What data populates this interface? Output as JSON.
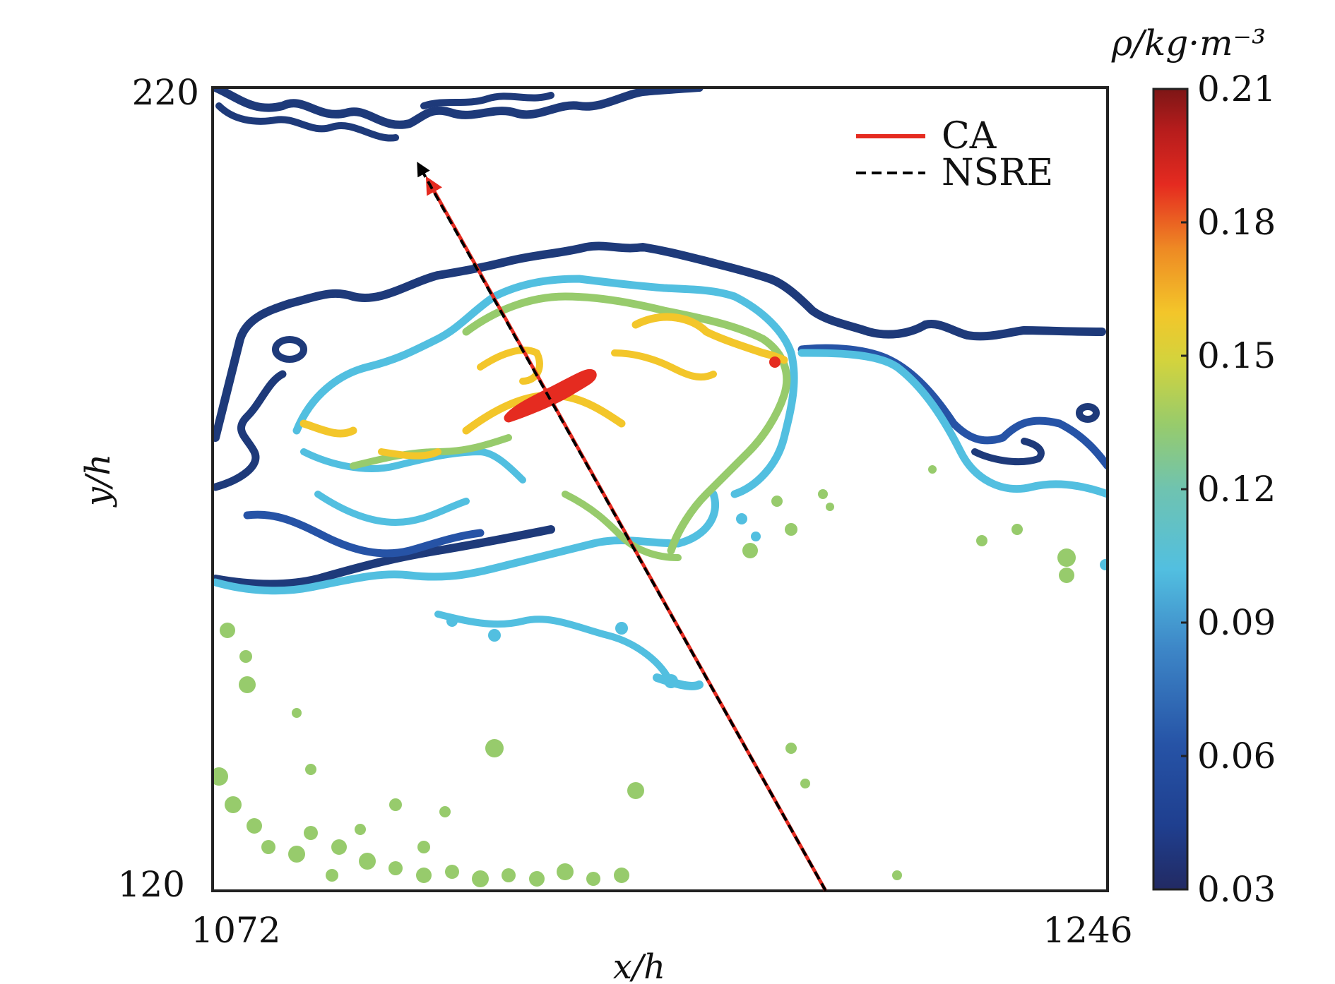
{
  "chart_data": {
    "type": "contour",
    "xlabel": "x/h",
    "ylabel": "y/h",
    "xlim": [
      1072,
      1246
    ],
    "ylim": [
      120,
      220
    ],
    "x_ticks": [
      "1072",
      "1246"
    ],
    "y_ticks": [
      "120",
      "220"
    ],
    "grid": false,
    "colorbar": {
      "label": "ρ/kg·m⁻³",
      "range": [
        0.03,
        0.21
      ],
      "ticks": [
        "0.03",
        "0.06",
        "0.09",
        "0.12",
        "0.15",
        "0.18",
        "0.21"
      ],
      "colormap": "jet"
    },
    "contour_levels": [
      {
        "value": 0.045,
        "color": "#1e3a7a"
      },
      {
        "value": 0.06,
        "color": "#2653a6"
      },
      {
        "value": 0.09,
        "color": "#52bfe0"
      },
      {
        "value": 0.12,
        "color": "#97cb6c"
      },
      {
        "value": 0.15,
        "color": "#f3c62a"
      },
      {
        "value": 0.19,
        "color": "#e52b20"
      }
    ],
    "legend": {
      "position": "top-right",
      "entries": [
        {
          "label": "CA",
          "color": "#e52b20",
          "style": "solid"
        },
        {
          "label": "NSRE",
          "color": "#000000",
          "style": "dashed"
        }
      ]
    },
    "series": [
      {
        "name": "CA",
        "style": "solid",
        "color": "#e52b20",
        "points": [
          [
            1191.2,
            120
          ],
          [
            1114.3,
            208
          ]
        ]
      },
      {
        "name": "NSRE",
        "style": "dashed",
        "color": "#000000",
        "points": [
          [
            1191.2,
            120
          ],
          [
            1112.4,
            210
          ]
        ]
      }
    ]
  }
}
